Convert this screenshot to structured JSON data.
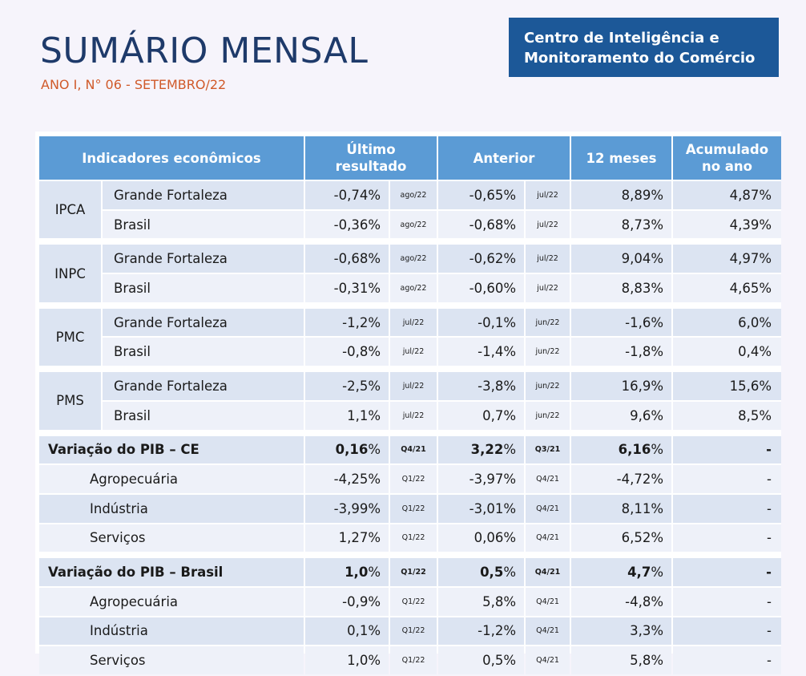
{
  "header": {
    "title": "SUMÁRIO MENSAL",
    "subtitle": "ANO I, N° 06 - SETEMBRO/22",
    "brand_line1": "Centro de Inteligência e",
    "brand_line2": "Monitoramento do Comércio"
  },
  "table": {
    "headers": {
      "indicator": "Indicadores econômicos",
      "last_1": "Último",
      "last_2": "resultado",
      "previous": "Anterior",
      "twelve": "12 meses",
      "ytd_1": "Acumulado",
      "ytd_2": "no ano"
    },
    "groups": [
      {
        "name": "IPCA",
        "rows": [
          {
            "region": "Grande Fortaleza",
            "last": "-0,74%",
            "last_p": "ago/22",
            "prev": "-0,65%",
            "prev_p": "jul/22",
            "m12": "8,89%",
            "ytd": "4,87%"
          },
          {
            "region": "Brasil",
            "last": "-0,36%",
            "last_p": "ago/22",
            "prev": "-0,68%",
            "prev_p": "jul/22",
            "m12": "8,73%",
            "ytd": "4,39%"
          }
        ]
      },
      {
        "name": "INPC",
        "rows": [
          {
            "region": "Grande Fortaleza",
            "last": "-0,68%",
            "last_p": "ago/22",
            "prev": "-0,62%",
            "prev_p": "jul/22",
            "m12": "9,04%",
            "ytd": "4,97%"
          },
          {
            "region": "Brasil",
            "last": "-0,31%",
            "last_p": "ago/22",
            "prev": "-0,60%",
            "prev_p": "jul/22",
            "m12": "8,83%",
            "ytd": "4,65%"
          }
        ]
      },
      {
        "name": "PMC",
        "rows": [
          {
            "region": "Grande Fortaleza",
            "last": "-1,2%",
            "last_p": "jul/22",
            "prev": "-0,1%",
            "prev_p": "jun/22",
            "m12": "-1,6%",
            "ytd": "6,0%"
          },
          {
            "region": "Brasil",
            "last": "-0,8%",
            "last_p": "jul/22",
            "prev": "-1,4%",
            "prev_p": "jun/22",
            "m12": "-1,8%",
            "ytd": "0,4%"
          }
        ]
      },
      {
        "name": "PMS",
        "rows": [
          {
            "region": "Grande Fortaleza",
            "last": "-2,5%",
            "last_p": "jul/22",
            "prev": "-3,8%",
            "prev_p": "jun/22",
            "m12": "16,9%",
            "ytd": "15,6%"
          },
          {
            "region": "Brasil",
            "last": "1,1%",
            "last_p": "jul/22",
            "prev": "0,7%",
            "prev_p": "jun/22",
            "m12": "9,6%",
            "ytd": "8,5%"
          }
        ]
      }
    ],
    "pib_ce": {
      "label": "Variação do PIB – CE",
      "last": "0,16",
      "last_p": "Q4/21",
      "prev": "3,22",
      "prev_p": "Q3/21",
      "m12": "6,16",
      "ytd": "-",
      "rows": [
        {
          "sector": "Agropecuária",
          "last": "-4,25%",
          "last_p": "Q1/22",
          "prev": "-3,97%",
          "prev_p": "Q4/21",
          "m12": "-4,72%",
          "ytd": "-"
        },
        {
          "sector": "Indústria",
          "last": "-3,99%",
          "last_p": "Q1/22",
          "prev": "-3,01%",
          "prev_p": "Q4/21",
          "m12": "8,11%",
          "ytd": "-"
        },
        {
          "sector": "Serviços",
          "last": "1,27%",
          "last_p": "Q1/22",
          "prev": "0,06%",
          "prev_p": "Q4/21",
          "m12": "6,52%",
          "ytd": "-"
        }
      ]
    },
    "pib_br": {
      "label": "Variação do PIB – Brasil",
      "last": "1,0",
      "last_p": "Q1/22",
      "prev": "0,5",
      "prev_p": "Q4/21",
      "m12": "4,7",
      "ytd": "-",
      "rows": [
        {
          "sector": "Agropecuária",
          "last": "-0,9%",
          "last_p": "Q1/22",
          "prev": "5,8%",
          "prev_p": "Q4/21",
          "m12": "-4,8%",
          "ytd": "-"
        },
        {
          "sector": "Indústria",
          "last": "0,1%",
          "last_p": "Q1/22",
          "prev": "-1,2%",
          "prev_p": "Q4/21",
          "m12": "3,3%",
          "ytd": "-"
        },
        {
          "sector": "Serviços",
          "last": "1,0%",
          "last_p": "Q1/22",
          "prev": "0,5%",
          "prev_p": "Q4/21",
          "m12": "5,8%",
          "ytd": "-"
        }
      ]
    },
    "pct": "%"
  }
}
